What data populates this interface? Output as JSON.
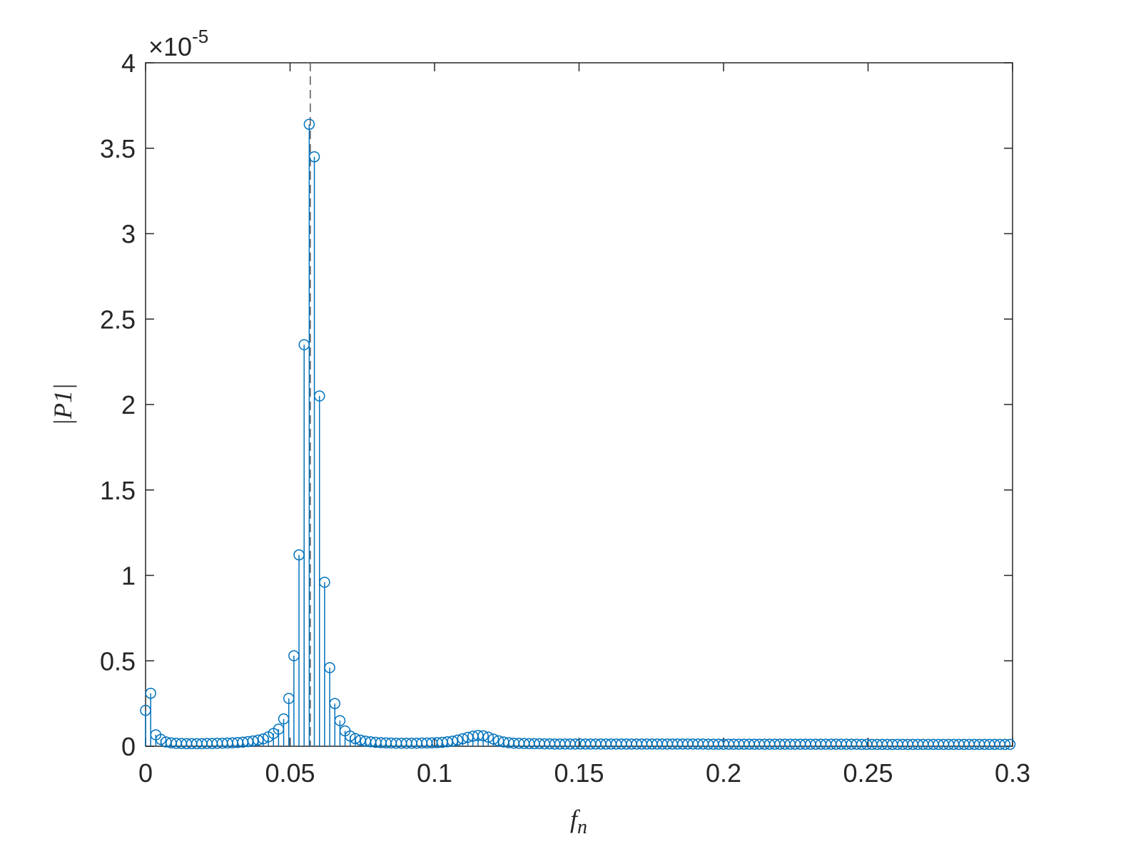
{
  "chart_data": {
    "type": "stem",
    "xlabel": "f",
    "xlabel_sub": "n",
    "ylabel": "|P1|",
    "y_multiplier": "×10",
    "y_exponent": "-5",
    "color": "#0072bd",
    "vline": 0.057,
    "xlim": [
      0,
      0.3
    ],
    "xticks": [
      0,
      0.05,
      0.1,
      0.15,
      0.2,
      0.25,
      0.3
    ],
    "ylim": [
      0,
      4
    ],
    "yticks": [
      0,
      0.5,
      1,
      1.5,
      2,
      2.5,
      3,
      3.5,
      4
    ],
    "x": [
      0,
      0.00177,
      0.00354,
      0.00531,
      0.00708,
      0.00885,
      0.01062,
      0.01239,
      0.01416,
      0.01593,
      0.0177,
      0.01947,
      0.02124,
      0.02301,
      0.02478,
      0.02655,
      0.02832,
      0.03009,
      0.03186,
      0.03363,
      0.0354,
      0.03717,
      0.03894,
      0.04071,
      0.04248,
      0.04425,
      0.04602,
      0.04779,
      0.04956,
      0.05133,
      0.0531,
      0.05487,
      0.05664,
      0.05841,
      0.06018,
      0.06195,
      0.06372,
      0.06549,
      0.06726,
      0.06903,
      0.0708,
      0.07257,
      0.07434,
      0.07611,
      0.07788,
      0.07965,
      0.08142,
      0.08319,
      0.08496,
      0.08673,
      0.0885,
      0.09027,
      0.09204,
      0.09381,
      0.09558,
      0.09735,
      0.09912,
      0.10089,
      0.10266,
      0.10443,
      0.1062,
      0.10797,
      0.10974,
      0.11151,
      0.11328,
      0.11505,
      0.11682,
      0.11859,
      0.12036,
      0.12213,
      0.1239,
      0.12567,
      0.12744,
      0.12921,
      0.13098,
      0.13275,
      0.13452,
      0.13629,
      0.13806,
      0.13983,
      0.1416,
      0.14337,
      0.14514,
      0.14691,
      0.14868,
      0.15045,
      0.15222,
      0.15399,
      0.15576,
      0.15753,
      0.1593,
      0.16107,
      0.16284,
      0.16461,
      0.16638,
      0.16815,
      0.16992,
      0.17169,
      0.17346,
      0.17523,
      0.177,
      0.17877,
      0.18054,
      0.18231,
      0.18408,
      0.18585,
      0.18762,
      0.18939,
      0.19116,
      0.19293,
      0.1947,
      0.19647,
      0.19824,
      0.20001,
      0.20178,
      0.20355,
      0.20532,
      0.20709,
      0.20886,
      0.21063,
      0.2124,
      0.21417,
      0.21594,
      0.21771,
      0.21948,
      0.22125,
      0.22302,
      0.22479,
      0.22656,
      0.22833,
      0.2301,
      0.23187,
      0.23364,
      0.23541,
      0.23718,
      0.23895,
      0.24072,
      0.24249,
      0.24426,
      0.24603,
      0.2478,
      0.24957,
      0.25134,
      0.25311,
      0.25488,
      0.25665,
      0.25842,
      0.26019,
      0.26196,
      0.26373,
      0.2655,
      0.26727,
      0.26904,
      0.27081,
      0.27258,
      0.27435,
      0.27612,
      0.27789,
      0.27966,
      0.28143,
      0.2832,
      0.28497,
      0.28674,
      0.28851,
      0.29028,
      0.29205,
      0.29382,
      0.29559,
      0.29736,
      0.29913
    ],
    "values": [
      0.21,
      0.31,
      0.067,
      0.04,
      0.025,
      0.02,
      0.017,
      0.016,
      0.015,
      0.015,
      0.015,
      0.015,
      0.016,
      0.016,
      0.017,
      0.018,
      0.019,
      0.02,
      0.022,
      0.024,
      0.027,
      0.031,
      0.036,
      0.043,
      0.055,
      0.075,
      0.1,
      0.16,
      0.28,
      0.53,
      1.12,
      2.35,
      3.64,
      3.45,
      2.05,
      0.96,
      0.46,
      0.25,
      0.15,
      0.09,
      0.06,
      0.045,
      0.036,
      0.03,
      0.026,
      0.023,
      0.021,
      0.02,
      0.019,
      0.018,
      0.018,
      0.018,
      0.018,
      0.018,
      0.019,
      0.019,
      0.02,
      0.021,
      0.023,
      0.026,
      0.03,
      0.036,
      0.044,
      0.052,
      0.059,
      0.063,
      0.061,
      0.053,
      0.042,
      0.032,
      0.025,
      0.021,
      0.018,
      0.017,
      0.016,
      0.015,
      0.015,
      0.015,
      0.014,
      0.014,
      0.013,
      0.013,
      0.013,
      0.013,
      0.013,
      0.013,
      0.013,
      0.013,
      0.013,
      0.013,
      0.013,
      0.013,
      0.013,
      0.013,
      0.013,
      0.013,
      0.013,
      0.013,
      0.013,
      0.013,
      0.013,
      0.013,
      0.013,
      0.013,
      0.013,
      0.013,
      0.013,
      0.013,
      0.013,
      0.013,
      0.012,
      0.012,
      0.012,
      0.012,
      0.012,
      0.012,
      0.012,
      0.012,
      0.012,
      0.012,
      0.012,
      0.012,
      0.012,
      0.012,
      0.012,
      0.012,
      0.012,
      0.012,
      0.012,
      0.012,
      0.012,
      0.012,
      0.012,
      0.012,
      0.012,
      0.012,
      0.012,
      0.012,
      0.012,
      0.012,
      0.011,
      0.011,
      0.011,
      0.011,
      0.011,
      0.011,
      0.011,
      0.011,
      0.011,
      0.011,
      0.011,
      0.011,
      0.011,
      0.011,
      0.011,
      0.011,
      0.011,
      0.011,
      0.011,
      0.011,
      0.011,
      0.011,
      0.011,
      0.011,
      0.011,
      0.011,
      0.011,
      0.011,
      0.011,
      0.011
    ]
  }
}
